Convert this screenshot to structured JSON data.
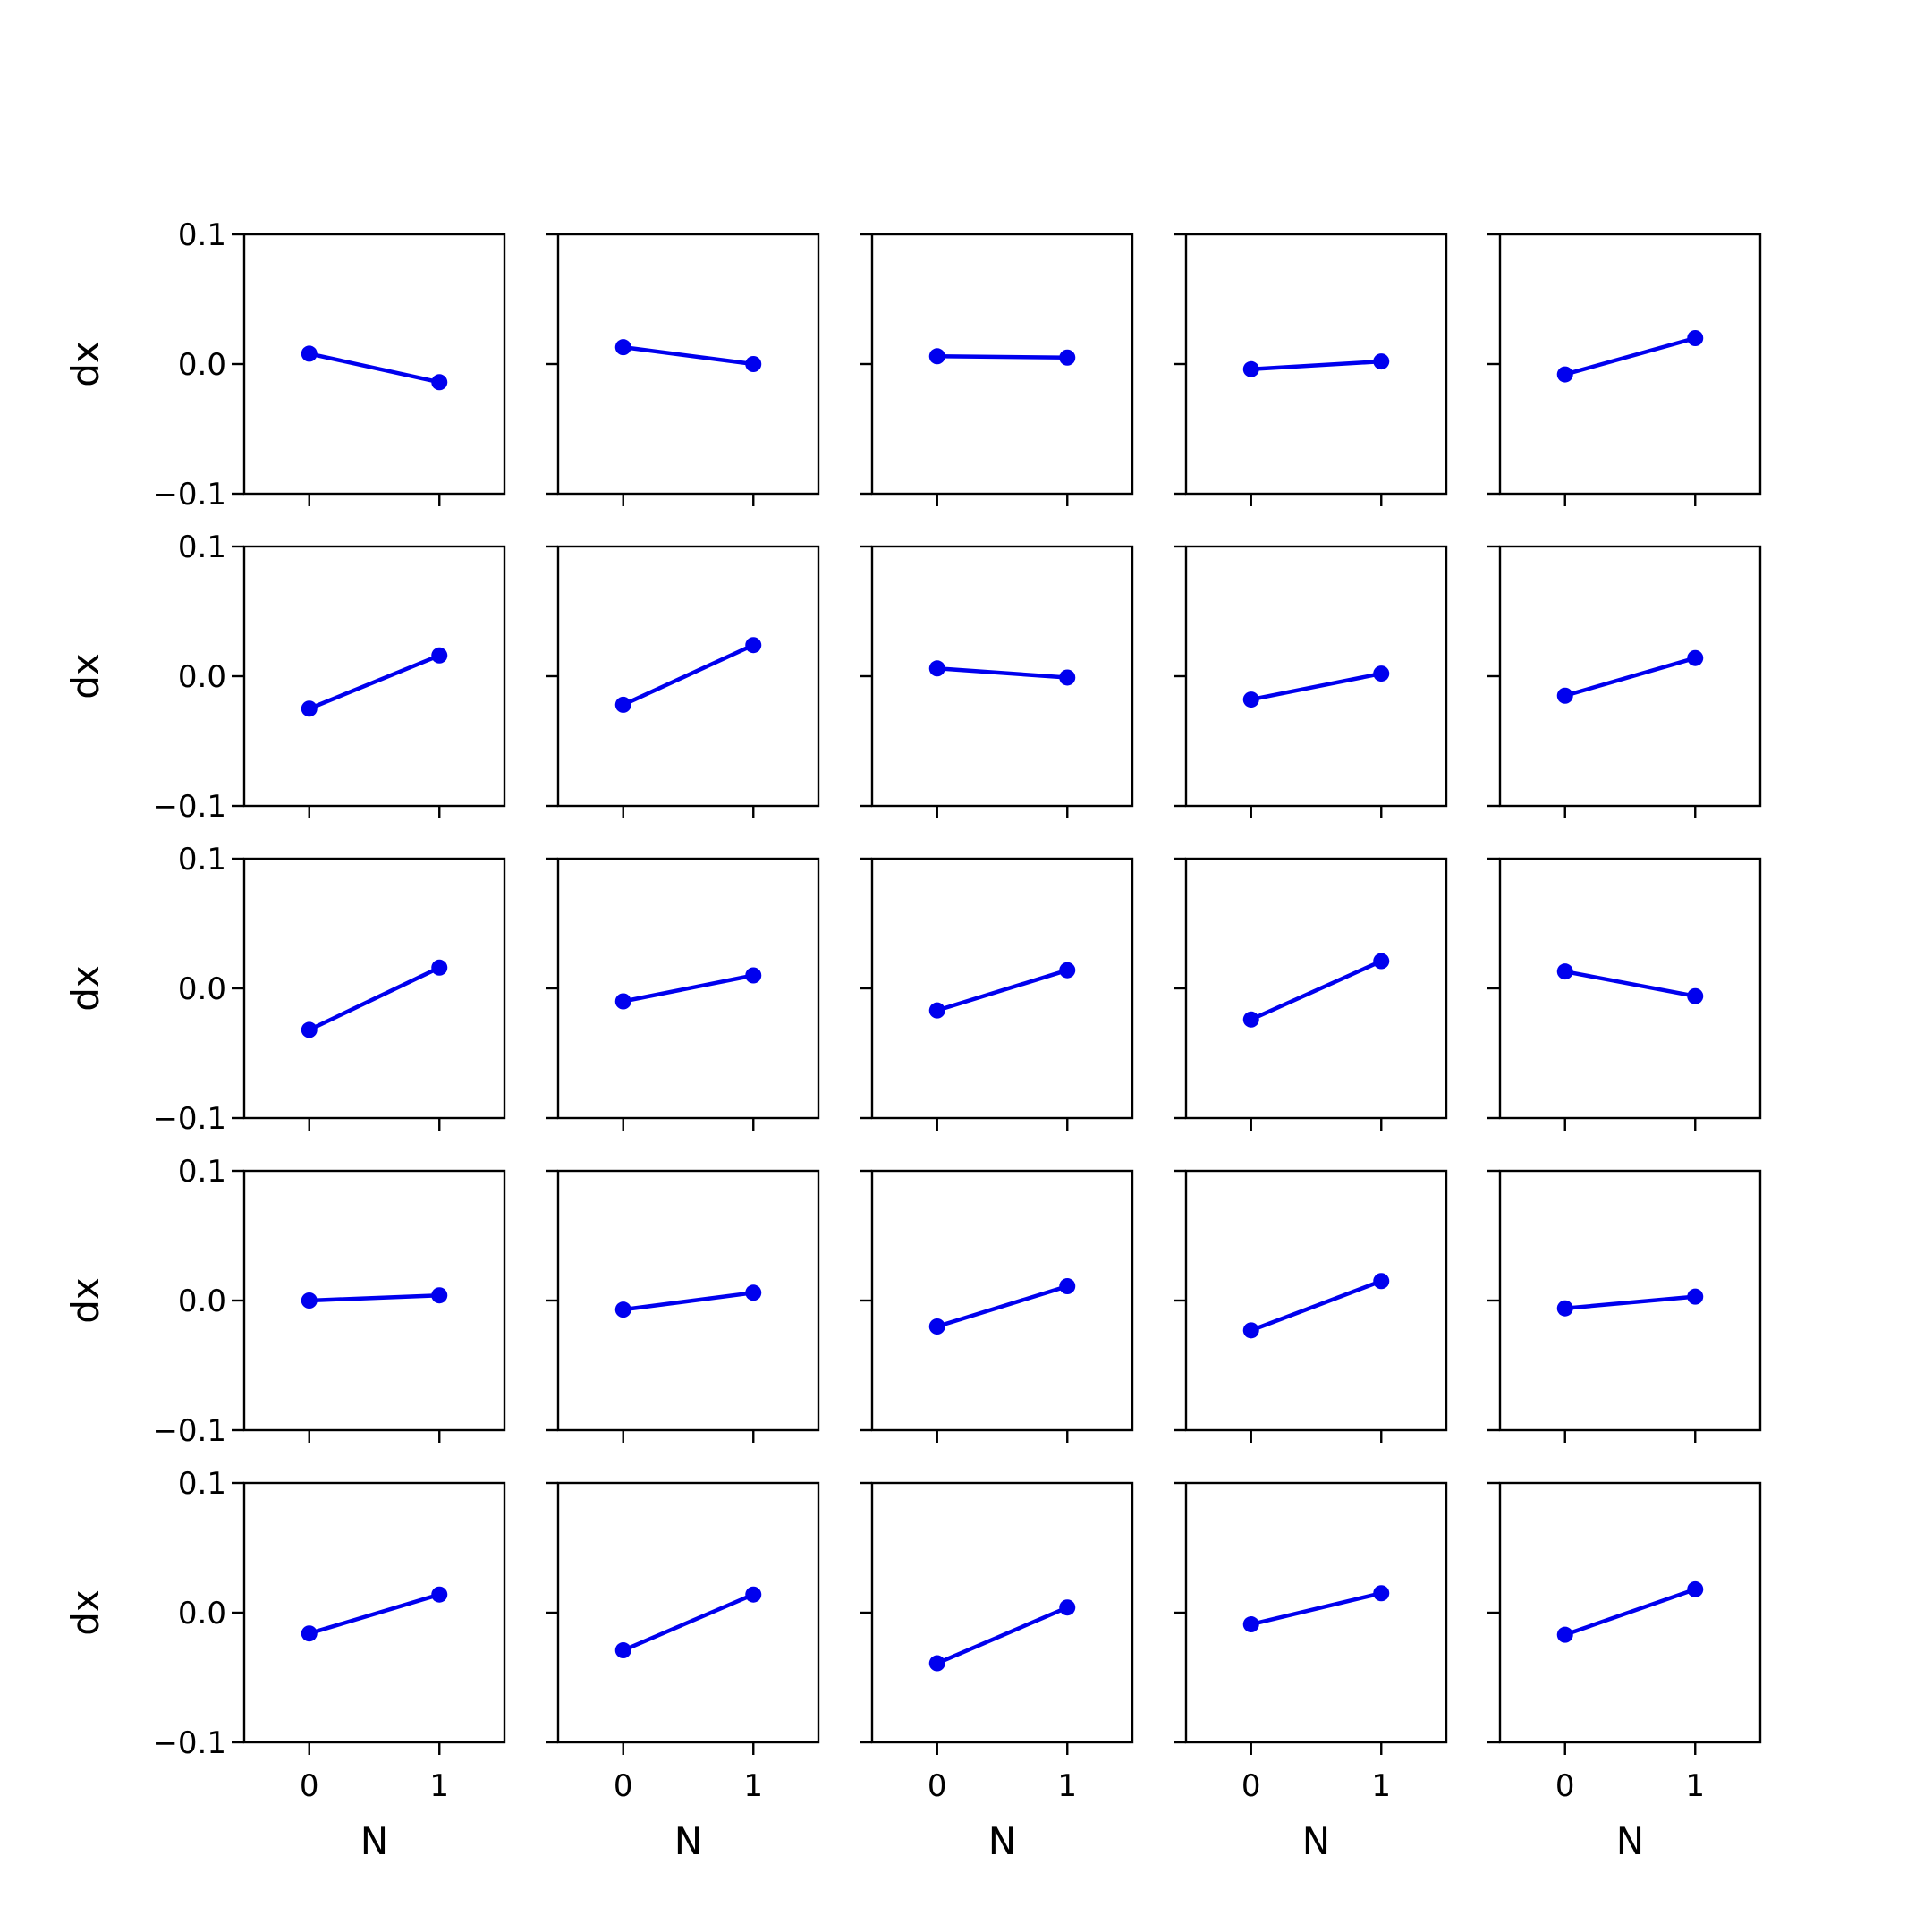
{
  "chart_data": {
    "type": "line",
    "layout": {
      "rows": 5,
      "cols": 5
    },
    "xlabel": "N",
    "ylabel": "dx",
    "xticks": [
      "0",
      "1"
    ],
    "yticks": [
      "0.1",
      "0.0",
      "−0.1"
    ],
    "xlim": [
      -0.5,
      1.5
    ],
    "ylim": [
      -0.1,
      0.1
    ],
    "grid": false,
    "colors": {
      "series": "#0000ee",
      "axes": "#000000",
      "background": "#ffffff"
    },
    "panels": [
      {
        "x": [
          0,
          1
        ],
        "y": [
          0.008,
          -0.014
        ]
      },
      {
        "x": [
          0,
          1
        ],
        "y": [
          0.013,
          0.0
        ]
      },
      {
        "x": [
          0,
          1
        ],
        "y": [
          0.006,
          0.005
        ]
      },
      {
        "x": [
          0,
          1
        ],
        "y": [
          -0.004,
          0.002
        ]
      },
      {
        "x": [
          0,
          1
        ],
        "y": [
          -0.008,
          0.02
        ]
      },
      {
        "x": [
          0,
          1
        ],
        "y": [
          -0.025,
          0.016
        ]
      },
      {
        "x": [
          0,
          1
        ],
        "y": [
          -0.022,
          0.024
        ]
      },
      {
        "x": [
          0,
          1
        ],
        "y": [
          0.006,
          -0.001
        ]
      },
      {
        "x": [
          0,
          1
        ],
        "y": [
          -0.018,
          0.002
        ]
      },
      {
        "x": [
          0,
          1
        ],
        "y": [
          -0.015,
          0.014
        ]
      },
      {
        "x": [
          0,
          1
        ],
        "y": [
          -0.032,
          0.016
        ]
      },
      {
        "x": [
          0,
          1
        ],
        "y": [
          -0.01,
          0.01
        ]
      },
      {
        "x": [
          0,
          1
        ],
        "y": [
          -0.017,
          0.014
        ]
      },
      {
        "x": [
          0,
          1
        ],
        "y": [
          -0.024,
          0.021
        ]
      },
      {
        "x": [
          0,
          1
        ],
        "y": [
          0.013,
          -0.006
        ]
      },
      {
        "x": [
          0,
          1
        ],
        "y": [
          0.0,
          0.004
        ]
      },
      {
        "x": [
          0,
          1
        ],
        "y": [
          -0.007,
          0.006
        ]
      },
      {
        "x": [
          0,
          1
        ],
        "y": [
          -0.02,
          0.011
        ]
      },
      {
        "x": [
          0,
          1
        ],
        "y": [
          -0.023,
          0.015
        ]
      },
      {
        "x": [
          0,
          1
        ],
        "y": [
          -0.006,
          0.003
        ]
      },
      {
        "x": [
          0,
          1
        ],
        "y": [
          -0.016,
          0.014
        ]
      },
      {
        "x": [
          0,
          1
        ],
        "y": [
          -0.029,
          0.014
        ]
      },
      {
        "x": [
          0,
          1
        ],
        "y": [
          -0.039,
          0.004
        ]
      },
      {
        "x": [
          0,
          1
        ],
        "y": [
          -0.009,
          0.015
        ]
      },
      {
        "x": [
          0,
          1
        ],
        "y": [
          -0.017,
          0.018
        ]
      }
    ]
  }
}
